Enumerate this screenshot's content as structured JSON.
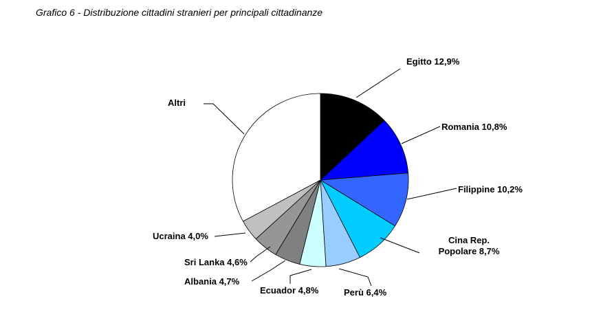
{
  "chart_data": {
    "type": "pie",
    "title": "Grafico 6 - Distribuzione cittadini stranieri per principali cittadinanze",
    "slices": [
      {
        "label": "Egitto 12,9%",
        "value": 12.9,
        "color": "#000000"
      },
      {
        "label": "Romania 10,8%",
        "value": 10.8,
        "color": "#0000ff"
      },
      {
        "label": "Filippine 10,2%",
        "value": 10.2,
        "color": "#3366ff"
      },
      {
        "label": "Cina Rep.\nPopolare  8,7%",
        "value": 8.7,
        "color": "#00ccff"
      },
      {
        "label": "Perù 6,4%",
        "value": 6.4,
        "color": "#99ccff"
      },
      {
        "label": "Ecuador 4,8%",
        "value": 4.8,
        "color": "#ccffff"
      },
      {
        "label": "Albania 4,7%",
        "value": 4.7,
        "color": "#808080"
      },
      {
        "label": "Sri Lanka 4,6%",
        "value": 4.6,
        "color": "#969696"
      },
      {
        "label": "Ucraina 4,0%",
        "value": 4.0,
        "color": "#c0c0c0"
      },
      {
        "label": "Altri",
        "value": 32.9,
        "color": "#ffffff"
      }
    ]
  }
}
